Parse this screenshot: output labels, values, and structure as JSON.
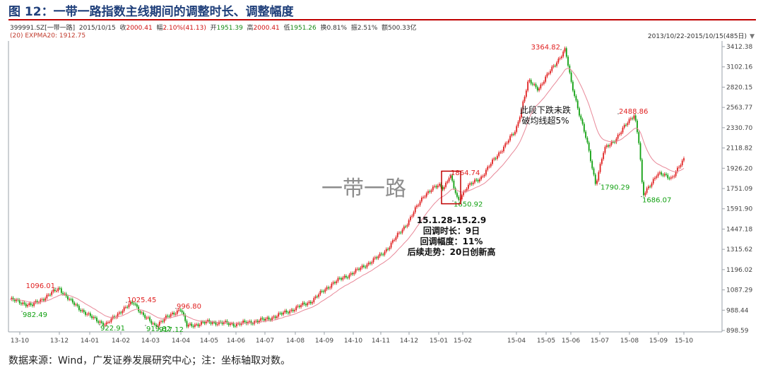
{
  "figure": {
    "title": "图 12：一带一路指数主线期间的调整时长、调整幅度",
    "source": "数据来源：Wind，广发证券发展研究中心；注：坐标轴取对数。"
  },
  "info_bar": {
    "code": "399991.SZ[一带一路]",
    "date": "2015/10/15",
    "close_label": "收",
    "close": "2000.41",
    "chg_label": "幅",
    "chg": "2.10%(41.13)",
    "open_label": "开",
    "open": "1951.39",
    "high_label": "高",
    "high": "2000.41",
    "low_label": "低",
    "low": "1951.26",
    "turnover": "换0.81%",
    "amplitude": "振2.51%",
    "amount": "额500.33亿"
  },
  "indicator": {
    "text": "(20)  EXPMA20: 1912.75"
  },
  "range_label": "2013/10/22-2015/10/15(485日)",
  "colors": {
    "up": "#e02020",
    "down": "#11a011",
    "ma": "#e88898",
    "box": "#c00000",
    "accent": "#1f3f7a"
  },
  "chart_data": {
    "type": "candlestick",
    "scale": "log",
    "ylim": [
      898.59,
      3412.38
    ],
    "yticks": [
      898.59,
      988.44,
      1087.29,
      1196.02,
      1315.62,
      1447.18,
      1591.9,
      1751.09,
      1926.2,
      2118.82,
      2330.7,
      2563.77,
      2820.15,
      3102.16,
      3412.38
    ],
    "xtick_labels": [
      "13-10",
      "13-12",
      "14-01",
      "14-02",
      "14-03",
      "14-04",
      "14-05",
      "14-06",
      "14-07",
      "14-08",
      "14-09",
      "14-10",
      "14-11",
      "14-12",
      "15-01",
      "15-02",
      "15-04",
      "15-05",
      "15-06",
      "15-07",
      "15-08",
      "15-09",
      "15-10"
    ],
    "close_path": [
      [
        "13-10",
        1040
      ],
      [
        "13-11",
        1010
      ],
      [
        "13-12",
        1096.01
      ],
      [
        "13-12b",
        1030
      ],
      [
        "14-01",
        960
      ],
      [
        "14-01b",
        922.91
      ],
      [
        "14-02",
        985
      ],
      [
        "14-02b",
        1025.45
      ],
      [
        "14-03",
        960
      ],
      [
        "14-03b",
        919.82
      ],
      [
        "14-04",
        996.8
      ],
      [
        "14-04b",
        917.12
      ],
      [
        "14-05",
        935
      ],
      [
        "14-06",
        925
      ],
      [
        "14-07",
        945
      ],
      [
        "14-07b",
        970
      ],
      [
        "14-08",
        1000
      ],
      [
        "14-08b",
        1030
      ],
      [
        "14-09",
        1120
      ],
      [
        "14-10",
        1180
      ],
      [
        "14-10b",
        1190
      ],
      [
        "14-11",
        1280
      ],
      [
        "14-11b",
        1330
      ],
      [
        "14-12",
        1500
      ],
      [
        "14-12b",
        1700
      ],
      [
        "15-01",
        1780
      ],
      [
        "15-01b",
        1760
      ],
      [
        "15-01c",
        1864.74
      ],
      [
        "15-02",
        1650.92
      ],
      [
        "15-02b",
        1760
      ],
      [
        "15-03",
        1840
      ],
      [
        "15-04",
        2300
      ],
      [
        "15-04b",
        2900
      ],
      [
        "15-05",
        2800
      ],
      [
        "15-05b",
        3150
      ],
      [
        "15-06",
        3364.82
      ],
      [
        "15-06b",
        2900
      ],
      [
        "15-07",
        2200
      ],
      [
        "15-07b",
        1790.29
      ],
      [
        "15-07c",
        2100
      ],
      [
        "15-08",
        2200
      ],
      [
        "15-08b",
        2488.86
      ],
      [
        "15-08c",
        2150
      ],
      [
        "15-09",
        1686.07
      ],
      [
        "15-09b",
        1880
      ],
      [
        "15-10",
        1840
      ],
      [
        "15-10b",
        2000.41
      ]
    ],
    "value_labels": [
      {
        "text": "1096.01",
        "value": 1096.01,
        "kind": "high"
      },
      {
        "text": "982.49",
        "value": 982.49,
        "kind": "low"
      },
      {
        "text": "922.91",
        "value": 922.91,
        "kind": "low"
      },
      {
        "text": "1025.45",
        "value": 1025.45,
        "kind": "high"
      },
      {
        "text": "919.82",
        "value": 919.82,
        "kind": "low"
      },
      {
        "text": "996.80",
        "value": 996.8,
        "kind": "high"
      },
      {
        "text": "917.12",
        "value": 917.12,
        "kind": "low"
      },
      {
        "text": "1864.74",
        "value": 1864.74,
        "kind": "high"
      },
      {
        "text": "1650.92",
        "value": 1650.92,
        "kind": "low"
      },
      {
        "text": "3364.82",
        "value": 3364.82,
        "kind": "high"
      },
      {
        "text": "1790.29",
        "value": 1790.29,
        "kind": "low"
      },
      {
        "text": "2488.86",
        "value": 2488.86,
        "kind": "high"
      },
      {
        "text": "1686.07",
        "value": 1686.07,
        "kind": "low"
      }
    ],
    "watermark": "一带一路",
    "annotations": {
      "correction": [
        "15.1.28-15.2.9",
        "回调时长：9日",
        "回调幅度：11%",
        "后续走势：20日创新高"
      ],
      "note": [
        "此段下跌未跌",
        "破均线超5%"
      ]
    },
    "series": [
      {
        "name": "EXPMA20",
        "value": 1912.75
      }
    ]
  }
}
